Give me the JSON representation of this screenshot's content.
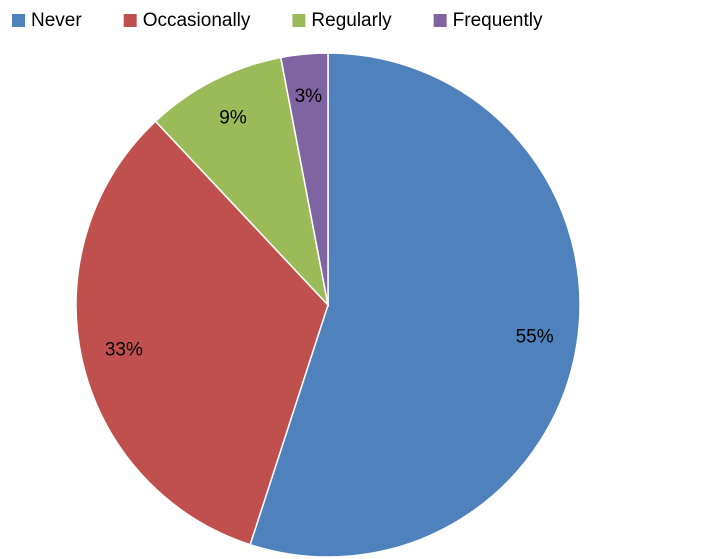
{
  "chart_data": {
    "type": "pie",
    "categories": [
      "Never",
      "Occasionally",
      "Regularly",
      "Frequently"
    ],
    "values": [
      55,
      33,
      9,
      3
    ],
    "value_labels": [
      "55%",
      "33%",
      "9%",
      "3%"
    ],
    "colors": [
      "#4f81bd",
      "#c0504d",
      "#9bbb59",
      "#8064a2"
    ],
    "legend": "top"
  }
}
